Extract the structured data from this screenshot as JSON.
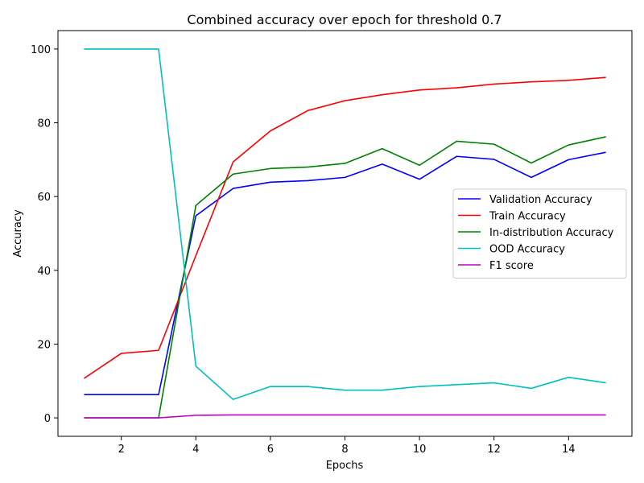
{
  "chart_data": {
    "type": "line",
    "title": "Combined accuracy over epoch for threshold 0.7",
    "xlabel": "Epochs",
    "ylabel": "Accuracy",
    "xlim": [
      0.3,
      15.7
    ],
    "ylim": [
      -5,
      105
    ],
    "xticks": [
      2,
      4,
      6,
      8,
      10,
      12,
      14
    ],
    "yticks": [
      0,
      20,
      40,
      60,
      80,
      100
    ],
    "x": [
      1,
      2,
      3,
      4,
      5,
      6,
      7,
      8,
      9,
      10,
      11,
      12,
      13,
      14,
      15
    ],
    "grid": false,
    "legend_position": "center-right",
    "series": [
      {
        "name": "Validation Accuracy",
        "color": "#0000ff",
        "values": [
          6.3,
          6.3,
          6.3,
          54.8,
          62.2,
          63.9,
          64.3,
          65.2,
          68.8,
          64.7,
          70.9,
          70.1,
          65.2,
          70.0,
          72.0
        ]
      },
      {
        "name": "Train Accuracy",
        "color": "#ff0000",
        "values": [
          10.7,
          17.5,
          18.3,
          44.0,
          69.4,
          77.8,
          83.3,
          86.0,
          87.6,
          88.9,
          89.5,
          90.5,
          91.1,
          91.5,
          92.3
        ]
      },
      {
        "name": "In-distribution Accuracy",
        "color": "#008000",
        "values": [
          0.0,
          0.0,
          0.0,
          57.6,
          66.1,
          67.6,
          68.0,
          69.0,
          73.0,
          68.5,
          75.0,
          74.2,
          69.1,
          74.0,
          76.2
        ]
      },
      {
        "name": "OOD Accuracy",
        "color": "#00bfbf",
        "values": [
          100.0,
          100.0,
          100.0,
          14.0,
          5.0,
          8.5,
          8.5,
          7.5,
          7.5,
          8.5,
          9.0,
          9.5,
          8.0,
          11.0,
          9.5
        ]
      },
      {
        "name": "F1 score",
        "color": "#bf00bf",
        "values": [
          0.0,
          0.0,
          0.0,
          0.7,
          0.8,
          0.8,
          0.8,
          0.8,
          0.8,
          0.8,
          0.8,
          0.8,
          0.8,
          0.8,
          0.8
        ]
      }
    ]
  }
}
